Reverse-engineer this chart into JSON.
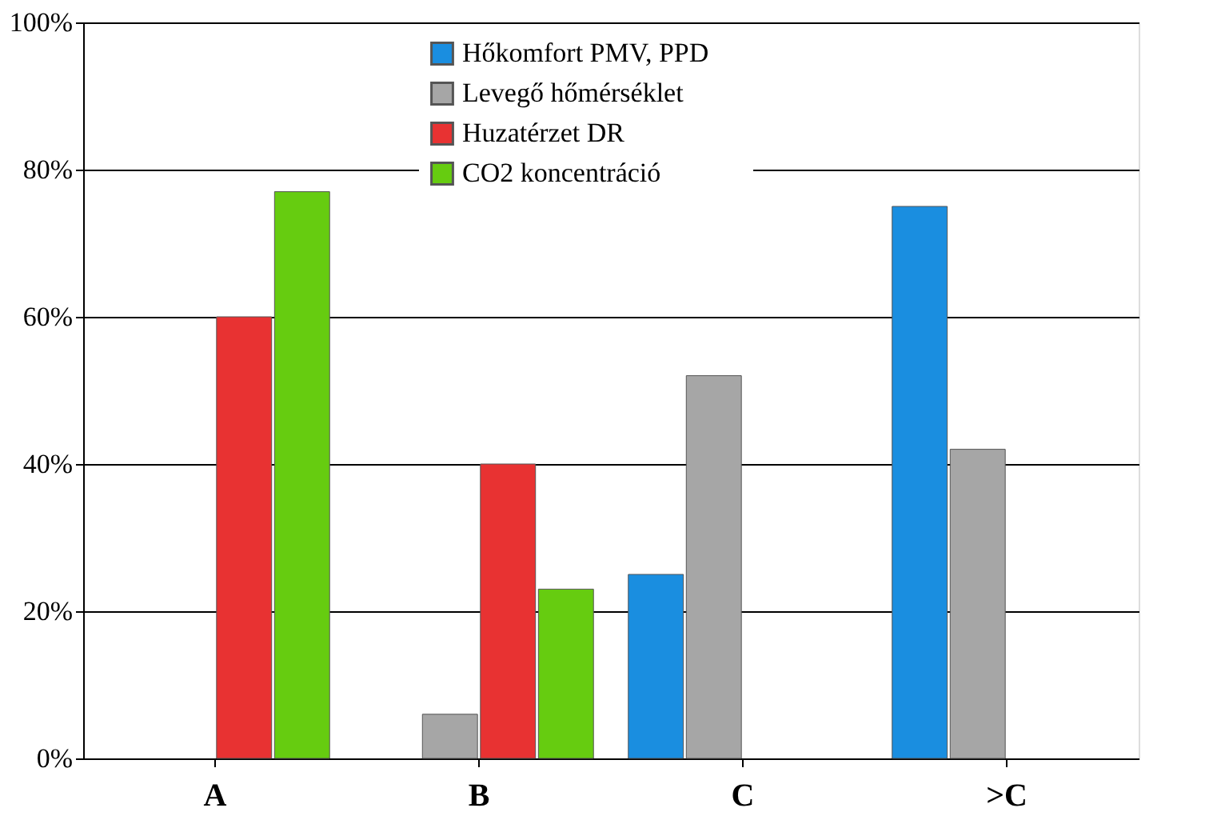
{
  "chart_data": {
    "type": "bar",
    "categories": [
      "A",
      "B",
      "C",
      ">C"
    ],
    "series": [
      {
        "name": "Hőkomfort      PMV, PPD",
        "color": "#1a8ee0",
        "values": [
          null,
          null,
          25,
          75
        ]
      },
      {
        "name": "Levegő hőmérséklet",
        "color": "#a6a6a6",
        "values": [
          null,
          6,
          52,
          42
        ]
      },
      {
        "name": "Huzatérzet      DR",
        "color": "#e83232",
        "values": [
          60,
          40,
          null,
          null
        ]
      },
      {
        "name": "CO2 koncentráció",
        "color": "#66cc10",
        "values": [
          77,
          23,
          null,
          null
        ]
      }
    ],
    "ylim": [
      0,
      100
    ],
    "yticks": [
      {
        "value": 0,
        "label": "0%"
      },
      {
        "value": 20,
        "label": "20%"
      },
      {
        "value": 40,
        "label": "40%"
      },
      {
        "value": 60,
        "label": "60%"
      },
      {
        "value": 80,
        "label": "80%"
      },
      {
        "value": 100,
        "label": "100%"
      }
    ],
    "grid": "y",
    "legend": "top"
  }
}
